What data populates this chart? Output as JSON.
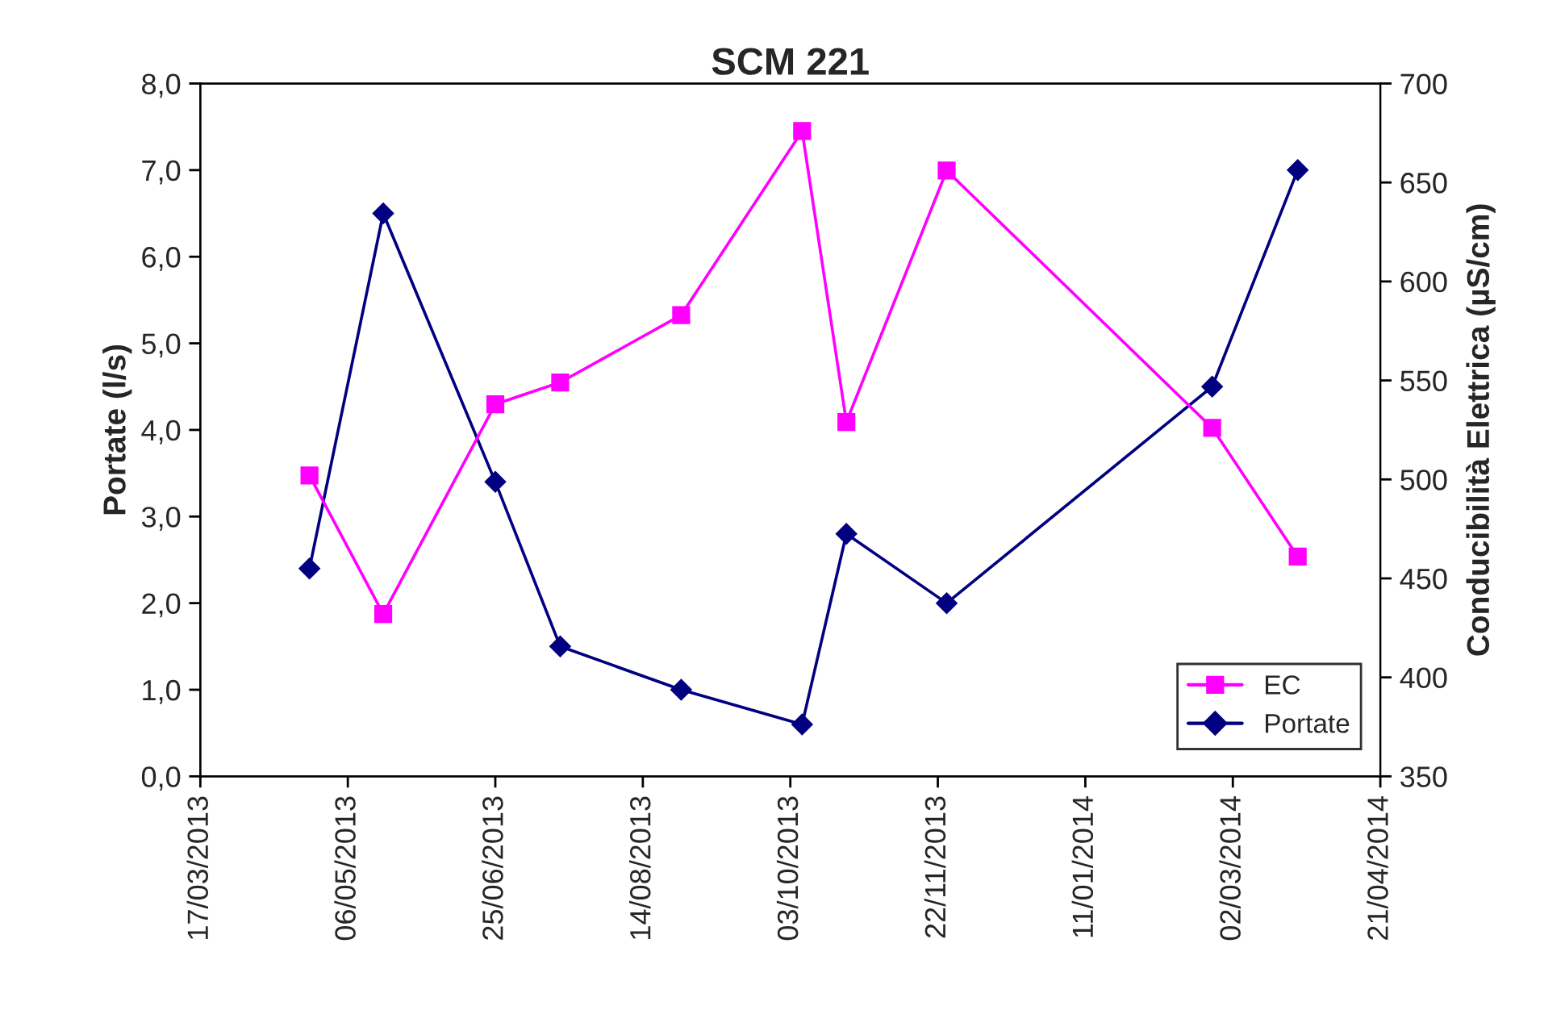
{
  "chart_data": {
    "type": "line",
    "title": "SCM 221",
    "ylabel": "Portate (l/s)",
    "y2label": "Conducibilità Elettrica (µS/cm)",
    "x": [
      "2013-04-23",
      "2013-05-18",
      "2013-06-25",
      "2013-07-17",
      "2013-08-27",
      "2013-10-07",
      "2013-10-22",
      "2013-11-25",
      "2014-02-23",
      "2014-03-24"
    ],
    "series": [
      {
        "name": "EC",
        "color": "#ff00ff",
        "marker": "square",
        "axis": "y2",
        "values": [
          502,
          432,
          538,
          549,
          583,
          676,
          529,
          656,
          526,
          461
        ]
      },
      {
        "name": "Portate",
        "color": "#000080",
        "marker": "diamond",
        "values": [
          2.4,
          6.5,
          3.4,
          1.5,
          1.0,
          0.6,
          2.8,
          2.0,
          4.5,
          7.0
        ]
      }
    ],
    "xlim": [
      "2013-03-17",
      "2014-04-21"
    ],
    "xticks": [
      {
        "value": "2013-03-17",
        "label": "17/03/2013"
      },
      {
        "value": "2013-05-06",
        "label": "06/05/2013"
      },
      {
        "value": "2013-06-25",
        "label": "25/06/2013"
      },
      {
        "value": "2013-08-14",
        "label": "14/08/2013"
      },
      {
        "value": "2013-10-03",
        "label": "03/10/2013"
      },
      {
        "value": "2013-11-22",
        "label": "22/11/2013"
      },
      {
        "value": "2014-01-11",
        "label": "11/01/2014"
      },
      {
        "value": "2014-03-02",
        "label": "02/03/2014"
      },
      {
        "value": "2014-04-21",
        "label": "21/04/2014"
      }
    ],
    "ylim": [
      0,
      8
    ],
    "yticks": [
      {
        "value": 0,
        "label": "0,0"
      },
      {
        "value": 1,
        "label": "1,0"
      },
      {
        "value": 2,
        "label": "2,0"
      },
      {
        "value": 3,
        "label": "3,0"
      },
      {
        "value": 4,
        "label": "4,0"
      },
      {
        "value": 5,
        "label": "5,0"
      },
      {
        "value": 6,
        "label": "6,0"
      },
      {
        "value": 7,
        "label": "7,0"
      },
      {
        "value": 8,
        "label": "8,0"
      }
    ],
    "y2lim": [
      350,
      700
    ],
    "y2ticks": [
      350,
      400,
      450,
      500,
      550,
      600,
      650,
      700
    ],
    "grid": false,
    "legend": "bottom right"
  }
}
